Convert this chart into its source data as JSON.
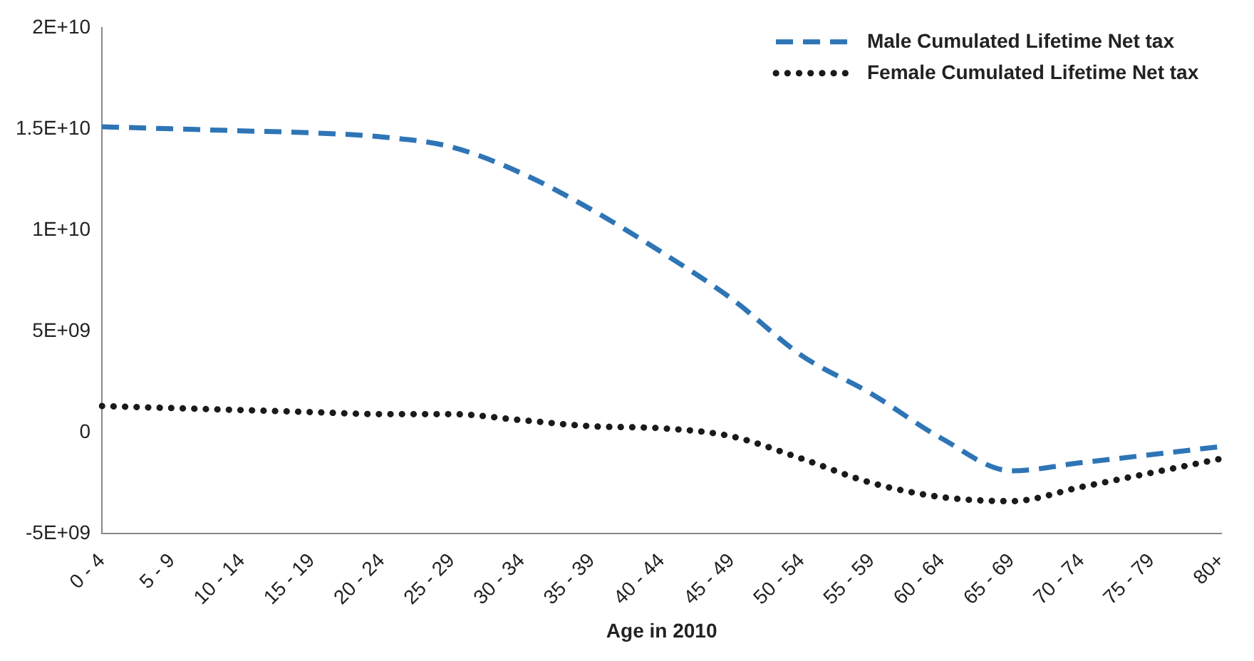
{
  "chart_data": {
    "type": "line",
    "xlabel": "Age in 2010",
    "categories": [
      "0 - 4",
      "5 - 9",
      "10 - 14",
      "15 - 19",
      "20 - 24",
      "25 - 29",
      "30 - 34",
      "35 - 39",
      "40 - 44",
      "45 - 49",
      "50 - 54",
      "55 - 59",
      "60 - 64",
      "65 - 69",
      "70 - 74",
      "75 - 79",
      "80+"
    ],
    "series": [
      {
        "name": "Male Cumulated Lifetime Net tax",
        "color": "#2e75b6",
        "line_style": "dashed",
        "values": [
          15100000000.0,
          15000000000.0,
          14900000000.0,
          14800000000.0,
          14600000000.0,
          14100000000.0,
          12800000000.0,
          11000000000.0,
          8900000000.0,
          6600000000.0,
          3800000000.0,
          1900000000.0,
          -300000000.0,
          -1900000000.0,
          -1500000000.0,
          -1100000000.0,
          -700000000.0
        ]
      },
      {
        "name": "Female Cumulated Lifetime Net tax",
        "color": "#1a1a1a",
        "line_style": "dotted",
        "values": [
          1300000000.0,
          1200000000.0,
          1100000000.0,
          1000000000.0,
          900000000.0,
          900000000.0,
          600000000.0,
          300000000.0,
          200000000.0,
          -200000000.0,
          -1300000000.0,
          -2500000000.0,
          -3200000000.0,
          -3400000000.0,
          -2700000000.0,
          -2000000000.0,
          -1300000000.0
        ]
      }
    ],
    "ylim": [
      -5000000000.0,
      20000000000.0
    ],
    "yticks": [
      {
        "value": -5000000000.0,
        "label": "-5E+09"
      },
      0,
      {
        "value": 5000000000.0,
        "label": "5E+09"
      },
      {
        "value": 10000000000.0,
        "label": "1E+10"
      },
      {
        "value": 15000000000.0,
        "label": "1.5E+10"
      },
      {
        "value": 20000000000.0,
        "label": "2E+10"
      }
    ],
    "grid": false,
    "legend": "top right",
    "marker": "none"
  }
}
